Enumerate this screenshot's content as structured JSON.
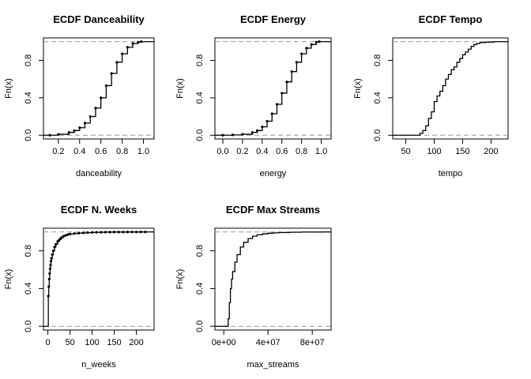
{
  "chart_data": [
    {
      "type": "line",
      "step": true,
      "title": "ECDF Danceability",
      "xlabel": "danceability",
      "ylabel": "Fn(x)",
      "xlim": [
        0.06,
        1.1
      ],
      "ylim": [
        -0.04,
        1.04
      ],
      "xticks": [
        0.2,
        0.4,
        0.6,
        0.8,
        1.0
      ],
      "xtick_labels": [
        "0.2",
        "0.4",
        "0.6",
        "0.8",
        "1.0"
      ],
      "yticks": [
        0.0,
        0.4,
        0.8
      ],
      "ytick_labels": [
        "0.0",
        "0.4",
        "0.8"
      ],
      "reference_lines": [
        0,
        1
      ],
      "marker": "point",
      "series": [
        {
          "x": [
            0.12,
            0.2,
            0.3,
            0.35,
            0.4,
            0.45,
            0.5,
            0.55,
            0.6,
            0.65,
            0.7,
            0.75,
            0.8,
            0.85,
            0.9,
            0.95,
            0.98
          ],
          "y": [
            0.0,
            0.01,
            0.03,
            0.05,
            0.08,
            0.13,
            0.2,
            0.29,
            0.4,
            0.53,
            0.66,
            0.78,
            0.87,
            0.94,
            0.98,
            0.995,
            1.0
          ]
        }
      ]
    },
    {
      "type": "line",
      "step": true,
      "title": "ECDF Energy",
      "xlabel": "energy",
      "ylabel": "Fn(x)",
      "xlim": [
        -0.08,
        1.1
      ],
      "ylim": [
        -0.04,
        1.04
      ],
      "xticks": [
        0.0,
        0.2,
        0.4,
        0.6,
        0.8,
        1.0
      ],
      "xtick_labels": [
        "0.0",
        "0.2",
        "0.4",
        "0.6",
        "0.8",
        "1.0"
      ],
      "yticks": [
        0.0,
        0.4,
        0.8
      ],
      "ytick_labels": [
        "0.0",
        "0.4",
        "0.8"
      ],
      "reference_lines": [
        0,
        1
      ],
      "marker": "point",
      "series": [
        {
          "x": [
            0.0,
            0.1,
            0.2,
            0.3,
            0.35,
            0.4,
            0.45,
            0.5,
            0.55,
            0.6,
            0.65,
            0.7,
            0.75,
            0.8,
            0.85,
            0.9,
            0.95,
            0.98
          ],
          "y": [
            0.0,
            0.003,
            0.01,
            0.03,
            0.05,
            0.09,
            0.15,
            0.23,
            0.33,
            0.45,
            0.57,
            0.68,
            0.78,
            0.87,
            0.93,
            0.97,
            0.995,
            1.0
          ]
        }
      ]
    },
    {
      "type": "line",
      "step": true,
      "title": "ECDF Tempo",
      "xlabel": "tempo",
      "ylabel": "Fn(x)",
      "xlim": [
        27,
        230
      ],
      "ylim": [
        -0.04,
        1.04
      ],
      "xticks": [
        50,
        100,
        150,
        200
      ],
      "xtick_labels": [
        "50",
        "100",
        "150",
        "200"
      ],
      "yticks": [
        0.0,
        0.4,
        0.8
      ],
      "ytick_labels": [
        "0.0",
        "0.4",
        "0.8"
      ],
      "reference_lines": [
        0,
        1
      ],
      "marker": "none",
      "series": [
        {
          "x": [
            70,
            75,
            80,
            85,
            90,
            95,
            100,
            105,
            110,
            115,
            120,
            125,
            130,
            135,
            140,
            145,
            150,
            155,
            160,
            165,
            170,
            175,
            180,
            190,
            205
          ],
          "y": [
            0.0,
            0.02,
            0.05,
            0.1,
            0.18,
            0.25,
            0.36,
            0.42,
            0.47,
            0.53,
            0.6,
            0.65,
            0.7,
            0.73,
            0.78,
            0.82,
            0.86,
            0.89,
            0.92,
            0.95,
            0.97,
            0.98,
            0.99,
            0.995,
            1.0
          ]
        }
      ]
    },
    {
      "type": "line",
      "step": true,
      "title": "ECDF N. Weeks",
      "xlabel": "n_weeks",
      "ylabel": "Fn(x)",
      "xlim": [
        -10,
        240
      ],
      "ylim": [
        -0.04,
        1.04
      ],
      "xticks": [
        0,
        50,
        100,
        150,
        200
      ],
      "xtick_labels": [
        "0",
        "50",
        "100",
        "150",
        "200"
      ],
      "yticks": [
        0.0,
        0.4,
        0.8
      ],
      "ytick_labels": [
        "0.0",
        "0.4",
        "0.8"
      ],
      "reference_lines": [
        0,
        1
      ],
      "marker": "point",
      "series": [
        {
          "x": [
            1,
            2,
            3,
            4,
            5,
            6,
            7,
            8,
            10,
            12,
            15,
            18,
            22,
            26,
            30,
            35,
            40,
            45,
            50,
            60,
            70,
            80,
            90,
            100,
            110,
            120,
            130,
            140,
            150,
            160,
            170,
            180,
            190,
            200,
            210,
            220
          ],
          "y": [
            0.32,
            0.42,
            0.5,
            0.56,
            0.61,
            0.65,
            0.69,
            0.72,
            0.76,
            0.8,
            0.84,
            0.87,
            0.9,
            0.92,
            0.94,
            0.955,
            0.965,
            0.972,
            0.978,
            0.984,
            0.988,
            0.991,
            0.993,
            0.995,
            0.996,
            0.997,
            0.998,
            0.9985,
            0.999,
            0.9993,
            0.9995,
            0.9997,
            0.9998,
            0.9999,
            0.99995,
            1.0
          ]
        }
      ]
    },
    {
      "type": "line",
      "step": true,
      "title": "ECDF Max Streams",
      "xlabel": "max_streams",
      "ylabel": "Fn(x)",
      "xlim": [
        -8000000,
        97000000
      ],
      "ylim": [
        -0.04,
        1.04
      ],
      "xticks": [
        0,
        40000000,
        80000000
      ],
      "xtick_labels": [
        "0e+00",
        "4e+07",
        "8e+07"
      ],
      "yticks": [
        0.0,
        0.4,
        0.8
      ],
      "ytick_labels": [
        "0.0",
        "0.4",
        "0.8"
      ],
      "reference_lines": [
        0,
        1
      ],
      "marker": "none",
      "series": [
        {
          "x": [
            3000000,
            4000000,
            5000000,
            6000000,
            7000000,
            8000000,
            10000000,
            12000000,
            15000000,
            18000000,
            22000000,
            26000000,
            30000000,
            35000000,
            40000000,
            45000000,
            50000000,
            60000000,
            70000000,
            90000000
          ],
          "y": [
            0.0,
            0.08,
            0.25,
            0.4,
            0.5,
            0.58,
            0.68,
            0.76,
            0.84,
            0.89,
            0.93,
            0.955,
            0.97,
            0.98,
            0.987,
            0.991,
            0.994,
            0.997,
            0.999,
            1.0
          ]
        }
      ]
    }
  ]
}
